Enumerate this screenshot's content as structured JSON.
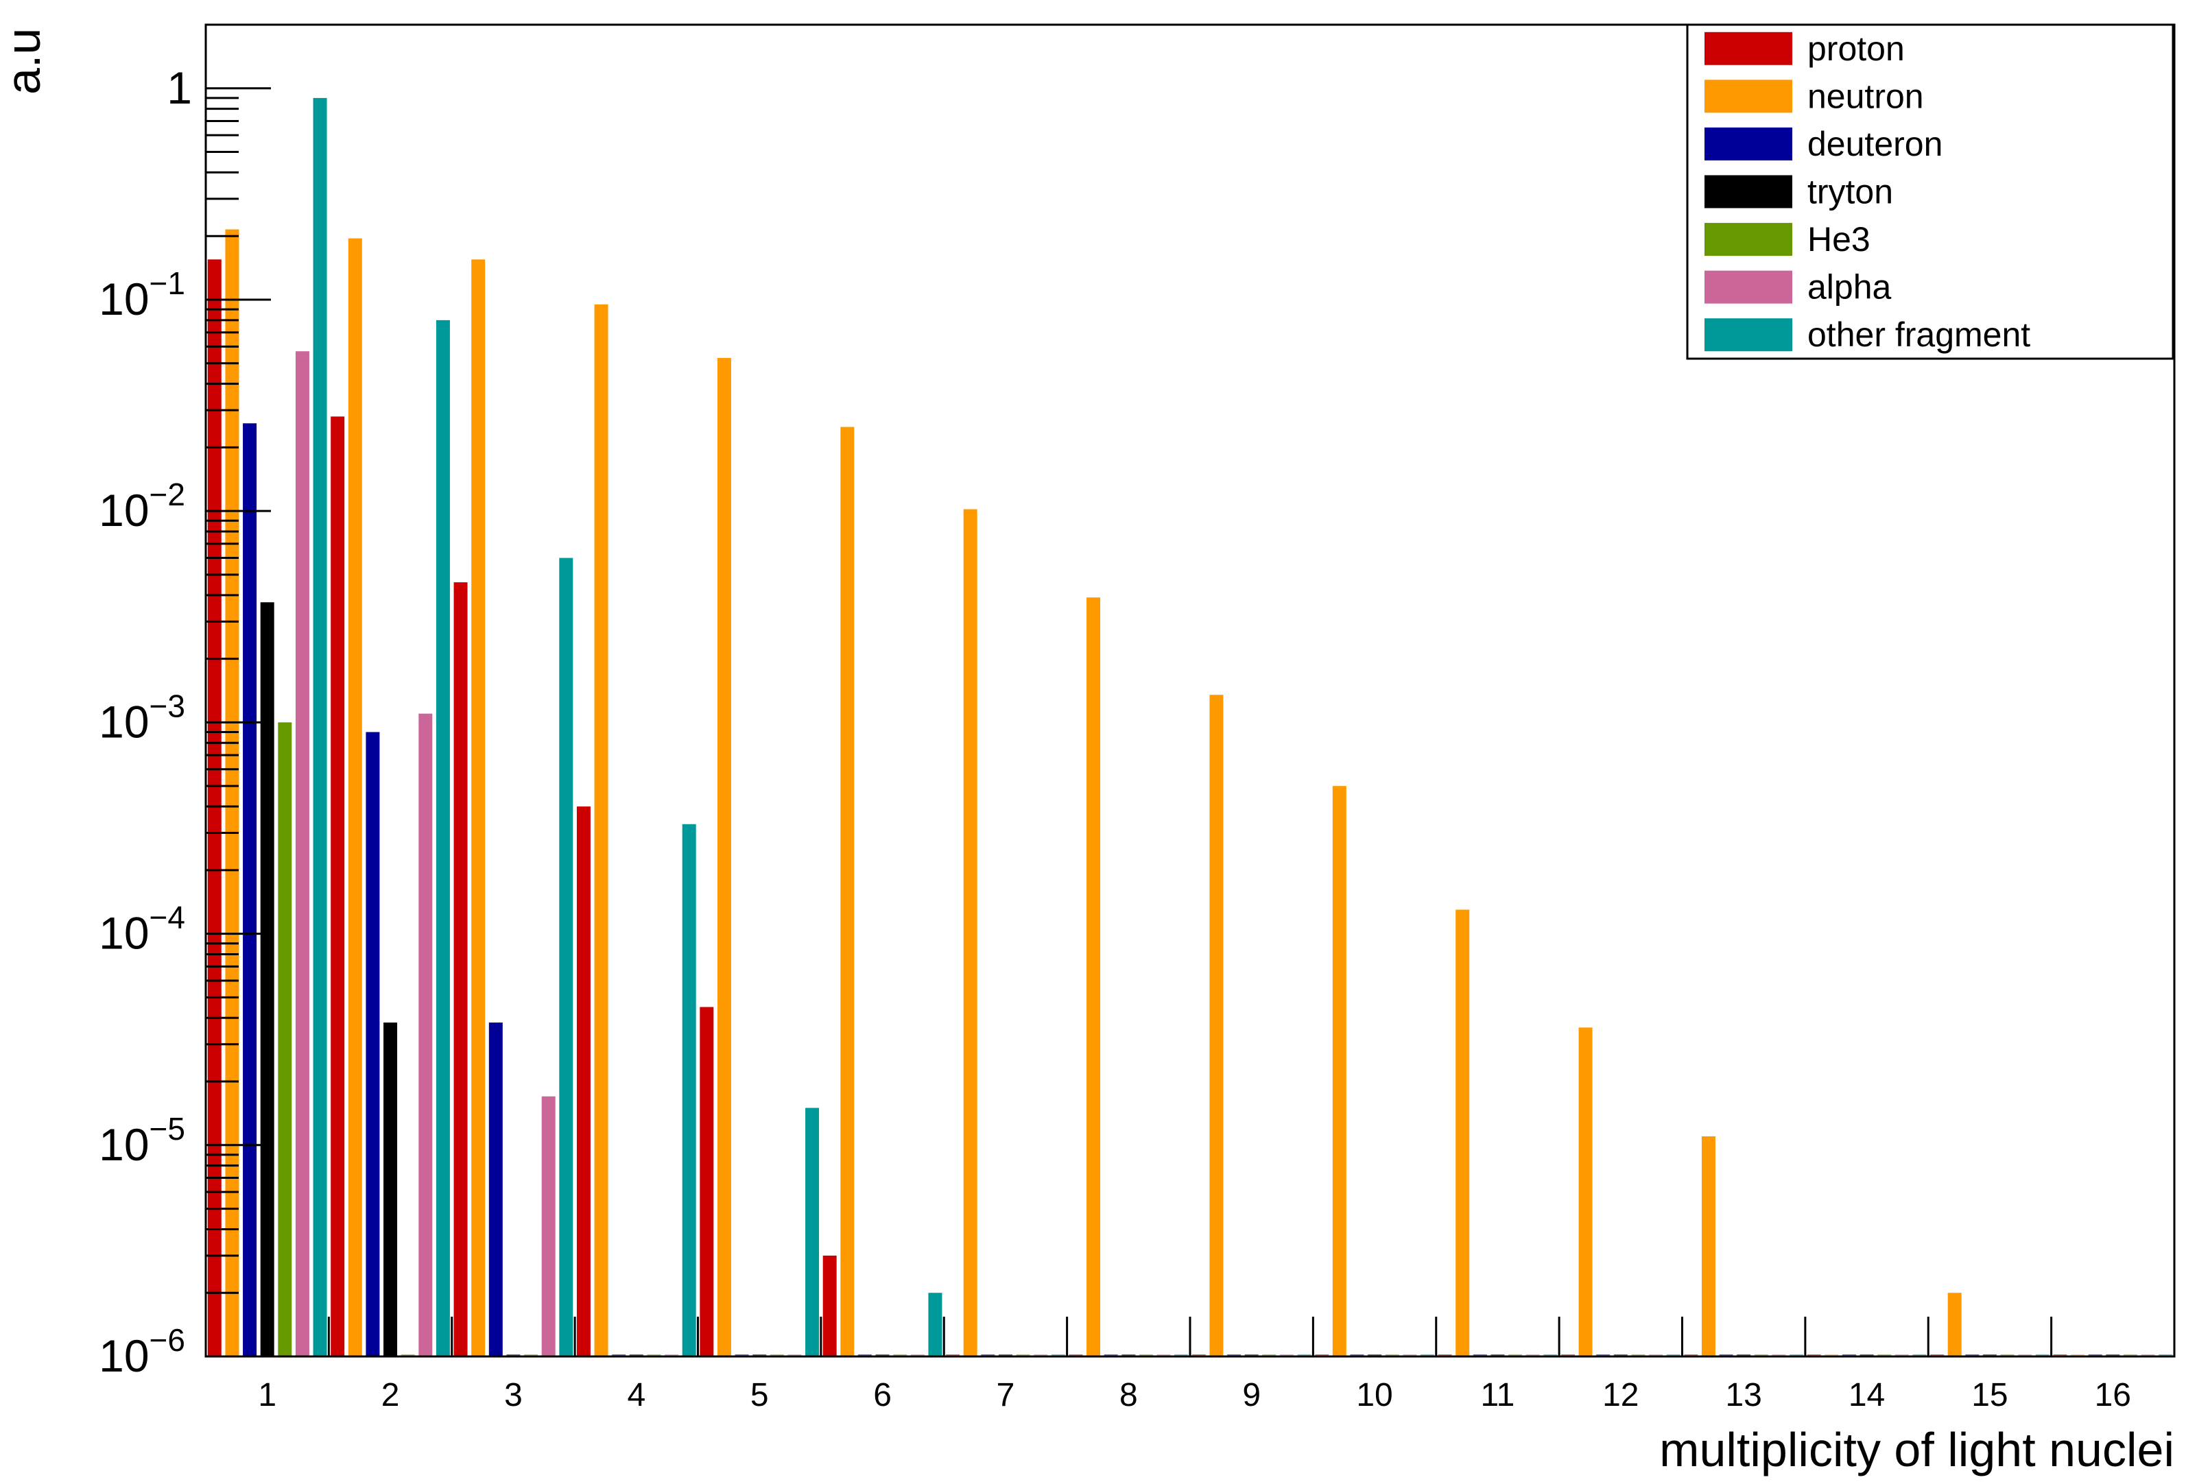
{
  "chart_data": {
    "type": "bar",
    "title": "",
    "xlabel": "multiplicity of light nuclei",
    "ylabel": "a.u",
    "yscale": "log",
    "ylim": [
      1e-06,
      2
    ],
    "grid": false,
    "legend_position": "top-right",
    "categories": [
      "1",
      "2",
      "3",
      "4",
      "5",
      "6",
      "7",
      "8",
      "9",
      "10",
      "11",
      "12",
      "13",
      "14",
      "15",
      "16"
    ],
    "y_ticks": [
      {
        "value": 1,
        "base": "1",
        "exp": ""
      },
      {
        "value": 0.1,
        "base": "10",
        "exp": "−1"
      },
      {
        "value": 0.01,
        "base": "10",
        "exp": "−2"
      },
      {
        "value": 0.001,
        "base": "10",
        "exp": "−3"
      },
      {
        "value": 0.0001,
        "base": "10",
        "exp": "−4"
      },
      {
        "value": 1e-05,
        "base": "10",
        "exp": "−5"
      },
      {
        "value": 1e-06,
        "base": "10",
        "exp": "−6"
      }
    ],
    "series": [
      {
        "name": "proton",
        "color": "#cc0000",
        "values": [
          0.155,
          0.028,
          0.0046,
          0.0004,
          4.5e-05,
          3e-06,
          null,
          null,
          null,
          null,
          null,
          null,
          null,
          null,
          null,
          null
        ]
      },
      {
        "name": "neutron",
        "color": "#ff9900",
        "values": [
          0.215,
          0.195,
          0.155,
          0.095,
          0.053,
          0.025,
          0.0102,
          0.0039,
          0.00135,
          0.0005,
          0.00013,
          3.6e-05,
          1.1e-05,
          null,
          2e-06,
          null
        ]
      },
      {
        "name": "deuteron",
        "color": "#000099",
        "values": [
          0.026,
          0.0009,
          3.8e-05,
          null,
          null,
          null,
          null,
          null,
          null,
          null,
          null,
          null,
          null,
          null,
          null,
          null
        ]
      },
      {
        "name": "tryton",
        "color": "#000000",
        "values": [
          0.0037,
          3.8e-05,
          null,
          null,
          null,
          null,
          null,
          null,
          null,
          null,
          null,
          null,
          null,
          null,
          null,
          null
        ]
      },
      {
        "name": "He3",
        "color": "#669900",
        "values": [
          0.001,
          null,
          null,
          null,
          null,
          null,
          null,
          null,
          null,
          null,
          null,
          null,
          null,
          null,
          null,
          null
        ]
      },
      {
        "name": "alpha",
        "color": "#cc6699",
        "values": [
          0.057,
          0.0011,
          1.7e-05,
          null,
          null,
          null,
          null,
          null,
          null,
          null,
          null,
          null,
          null,
          null,
          null,
          null
        ]
      },
      {
        "name": "other fragment",
        "color": "#009999",
        "values": [
          0.9,
          0.08,
          0.006,
          0.00033,
          1.5e-05,
          2e-06,
          null,
          null,
          null,
          null,
          null,
          null,
          null,
          null,
          null,
          null
        ]
      }
    ]
  }
}
